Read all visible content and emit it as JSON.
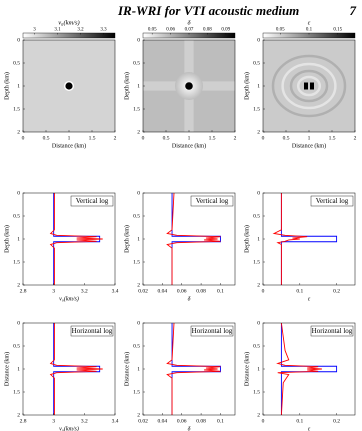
{
  "header": {
    "title": "IR-WRI for VTI acoustic medium",
    "page": "7"
  },
  "chart_data": [
    {
      "type": "image",
      "colorbar_label": "v₀(km/s)",
      "clim": [
        2.95,
        3.35
      ],
      "cticks": [
        3,
        3.1,
        3.2,
        3.3
      ],
      "xlabel": "Distance (km)",
      "ylabel": "Depth (km)",
      "xlim": [
        0,
        2
      ],
      "ylim": [
        0,
        2
      ],
      "xticks": [
        0,
        0.5,
        1,
        1.5,
        2
      ],
      "yticks": [
        0,
        0.5,
        1,
        1.5,
        2
      ],
      "y_reversed": true
    },
    {
      "type": "image",
      "colorbar_label": "δ",
      "clim": [
        0.045,
        0.095
      ],
      "cticks": [
        0.05,
        0.06,
        0.07,
        0.08,
        0.09
      ],
      "xlabel": "Distance (km)",
      "ylabel": "Depth (km)",
      "xlim": [
        0,
        2
      ],
      "ylim": [
        0,
        2
      ],
      "xticks": [
        0,
        0.5,
        1,
        1.5,
        2
      ],
      "yticks": [
        0,
        0.5,
        1,
        1.5,
        2
      ],
      "y_reversed": true
    },
    {
      "type": "image",
      "colorbar_label": "ε",
      "clim": [
        0.02,
        0.18
      ],
      "cticks": [
        0.05,
        0.1,
        0.15
      ],
      "xlabel": "Distance (km)",
      "ylabel": "Depth (km)",
      "xlim": [
        0,
        2
      ],
      "ylim": [
        0,
        2
      ],
      "xticks": [
        0,
        0.5,
        1,
        1.5,
        2
      ],
      "yticks": [
        0,
        0.5,
        1,
        1.5,
        2
      ],
      "y_reversed": true
    },
    {
      "type": "line",
      "annotation": "Vertical log",
      "xlabel": "v₀(km/s)",
      "ylabel": "Depth (km)",
      "xlim": [
        2.8,
        3.4
      ],
      "xticks": [
        2.8,
        3,
        3.2,
        3.4
      ],
      "ylim": [
        0,
        2
      ],
      "yticks": [
        0,
        0.5,
        1,
        1.5,
        2
      ],
      "y_reversed": true,
      "series": [
        {
          "color": "#0000ff",
          "depth": [
            0,
            0.94,
            0.94,
            1.06,
            1.06,
            2
          ],
          "values": [
            3,
            3,
            3.3,
            3.3,
            3,
            3
          ]
        },
        {
          "color": "#ff0000",
          "depth": [
            0,
            0.8,
            0.88,
            0.92,
            0.95,
            0.98,
            1.0,
            1.02,
            1.05,
            1.08,
            1.12,
            1.2,
            2
          ],
          "values": [
            3.005,
            3.005,
            2.98,
            3.02,
            3.28,
            3.15,
            3.32,
            3.15,
            3.28,
            3.02,
            2.98,
            3.005,
            3.005
          ]
        }
      ]
    },
    {
      "type": "line",
      "annotation": "Vertical log",
      "xlabel": "δ",
      "ylabel": "Depth (km)",
      "xlim": [
        0.02,
        0.115
      ],
      "xticks": [
        0.02,
        0.04,
        0.06,
        0.08,
        0.1
      ],
      "ylim": [
        0,
        2
      ],
      "yticks": [
        0,
        0.5,
        1,
        1.5,
        2
      ],
      "y_reversed": true,
      "series": [
        {
          "color": "#0000ff",
          "depth": [
            0,
            0.94,
            0.94,
            1.06,
            1.06,
            2
          ],
          "values": [
            0.05,
            0.05,
            0.1,
            0.1,
            0.05,
            0.05
          ]
        },
        {
          "color": "#ff0000",
          "depth": [
            0,
            0.8,
            0.88,
            0.92,
            0.95,
            0.98,
            1.0,
            1.02,
            1.05,
            1.08,
            1.12,
            1.2,
            2
          ],
          "values": [
            0.052,
            0.05,
            0.045,
            0.055,
            0.1,
            0.085,
            0.097,
            0.083,
            0.1,
            0.055,
            0.045,
            0.05,
            0.05
          ]
        }
      ]
    },
    {
      "type": "line",
      "annotation": "Vertical log",
      "xlabel": "ε",
      "ylabel": "Depth (km)",
      "xlim": [
        0,
        0.25
      ],
      "xticks": [
        0,
        0.1,
        0.2
      ],
      "ylim": [
        0,
        2
      ],
      "yticks": [
        0,
        0.5,
        1,
        1.5,
        2
      ],
      "y_reversed": true,
      "series": [
        {
          "color": "#0000ff",
          "depth": [
            0,
            0.94,
            0.94,
            1.06,
            1.06,
            2
          ],
          "values": [
            0.05,
            0.05,
            0.2,
            0.2,
            0.05,
            0.05
          ]
        },
        {
          "color": "#ff0000",
          "depth": [
            0,
            0.8,
            0.88,
            0.92,
            0.95,
            0.98,
            1.0,
            1.02,
            1.05,
            1.08,
            1.12,
            1.2,
            2
          ],
          "values": [
            0.05,
            0.05,
            0.03,
            0.06,
            0.12,
            0.08,
            0.1,
            0.07,
            0.06,
            0.04,
            0.05,
            0.05,
            0.05
          ]
        }
      ]
    },
    {
      "type": "line",
      "annotation": "Horizontal log",
      "xlabel": "v₀(km/s)",
      "ylabel": "Distance (km)",
      "xlim": [
        2.8,
        3.4
      ],
      "xticks": [
        2.8,
        3,
        3.2,
        3.4
      ],
      "ylim": [
        0,
        2
      ],
      "yticks": [
        0,
        0.5,
        1,
        1.5,
        2
      ],
      "y_reversed": true,
      "series": [
        {
          "color": "#0000ff",
          "depth": [
            0,
            0.94,
            0.94,
            1.06,
            1.06,
            2
          ],
          "values": [
            3,
            3,
            3.3,
            3.3,
            3,
            3
          ]
        },
        {
          "color": "#ff0000",
          "depth": [
            0,
            0.8,
            0.88,
            0.92,
            0.95,
            0.98,
            1.0,
            1.02,
            1.05,
            1.08,
            1.12,
            1.2,
            2
          ],
          "values": [
            3.005,
            3.005,
            2.98,
            3.02,
            3.28,
            3.15,
            3.32,
            3.15,
            3.28,
            3.02,
            2.98,
            3.005,
            3.005
          ]
        }
      ]
    },
    {
      "type": "line",
      "annotation": "Horizontal log",
      "xlabel": "δ",
      "ylabel": "Distance (km)",
      "xlim": [
        0.02,
        0.115
      ],
      "xticks": [
        0.02,
        0.04,
        0.06,
        0.08,
        0.1
      ],
      "ylim": [
        0,
        2
      ],
      "yticks": [
        0,
        0.5,
        1,
        1.5,
        2
      ],
      "y_reversed": true,
      "series": [
        {
          "color": "#0000ff",
          "depth": [
            0,
            0.94,
            0.94,
            1.06,
            1.06,
            2
          ],
          "values": [
            0.05,
            0.05,
            0.1,
            0.1,
            0.05,
            0.05
          ]
        },
        {
          "color": "#ff0000",
          "depth": [
            0,
            0.8,
            0.88,
            0.92,
            0.95,
            0.98,
            1.0,
            1.02,
            1.05,
            1.08,
            1.12,
            1.2,
            2
          ],
          "values": [
            0.052,
            0.05,
            0.045,
            0.055,
            0.1,
            0.085,
            0.097,
            0.083,
            0.1,
            0.055,
            0.045,
            0.05,
            0.05
          ]
        }
      ]
    },
    {
      "type": "line",
      "annotation": "Horizontal log",
      "xlabel": "ε",
      "ylabel": "Distance (km)",
      "xlim": [
        0,
        0.25
      ],
      "xticks": [
        0,
        0.1,
        0.2
      ],
      "ylim": [
        0,
        2
      ],
      "yticks": [
        0,
        0.5,
        1,
        1.5,
        2
      ],
      "y_reversed": true,
      "series": [
        {
          "color": "#0000ff",
          "depth": [
            0,
            0.94,
            0.94,
            1.06,
            1.06,
            2
          ],
          "values": [
            0.05,
            0.05,
            0.2,
            0.2,
            0.05,
            0.05
          ]
        },
        {
          "color": "#ff0000",
          "depth": [
            0,
            0.6,
            0.8,
            0.88,
            0.92,
            0.95,
            0.98,
            1.0,
            1.02,
            1.05,
            1.08,
            1.12,
            1.3,
            2
          ],
          "values": [
            0.05,
            0.06,
            0.07,
            0.04,
            0.06,
            0.15,
            0.12,
            0.16,
            0.12,
            0.15,
            0.04,
            0.07,
            0.055,
            0.05
          ]
        }
      ]
    }
  ]
}
